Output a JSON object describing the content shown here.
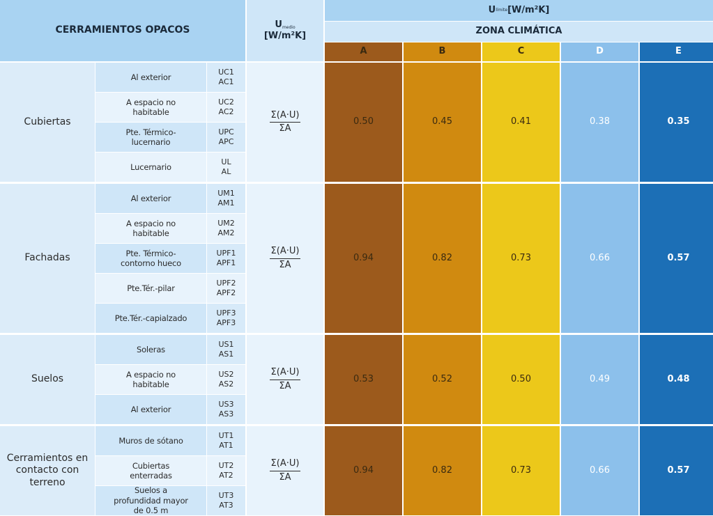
{
  "header": {
    "opacos": "CERRAMIENTOS OPACOS",
    "umedio_main": "U",
    "umedio_sub": "medio",
    "umedio_unit": "[W/m²K]",
    "ulimite_main": "U",
    "ulimite_sub": "límite",
    "ulimite_unit": " [W/m²K]",
    "zona": "ZONA CLIMÁTICA"
  },
  "zones": [
    {
      "label": "A",
      "color": "#9c5a1c"
    },
    {
      "label": "B",
      "color": "#d08a10"
    },
    {
      "label": "C",
      "color": "#ecc81a"
    },
    {
      "label": "D",
      "color": "#8cc0eb"
    },
    {
      "label": "E",
      "color": "#1c6fb6"
    }
  ],
  "formula": {
    "numerator": "Σ(A·U)",
    "denominator": "ΣA"
  },
  "groups": [
    {
      "name": "Cubiertas",
      "rows": [
        {
          "label": "Al exterior",
          "codes": [
            "UC1",
            "AC1"
          ]
        },
        {
          "label": "A espacio no habitable",
          "codes": [
            "UC2",
            "AC2"
          ]
        },
        {
          "label": "Pte. Térmico-lucernario",
          "codes": [
            "UPC",
            "APC"
          ]
        },
        {
          "label": "Lucernario",
          "codes": [
            "UL",
            "AL"
          ]
        }
      ],
      "values": [
        "0.50",
        "0.45",
        "0.41",
        "0.38",
        "0.35"
      ]
    },
    {
      "name": "Fachadas",
      "rows": [
        {
          "label": "Al exterior",
          "codes": [
            "UM1",
            "AM1"
          ]
        },
        {
          "label": "A espacio no habitable",
          "codes": [
            "UM2",
            "AM2"
          ]
        },
        {
          "label": "Pte. Térmico-contorno hueco",
          "codes": [
            "UPF1",
            "APF1"
          ]
        },
        {
          "label": "Pte.Tér.-pilar",
          "codes": [
            "UPF2",
            "APF2"
          ]
        },
        {
          "label": "Pte.Tér.-capialzado",
          "codes": [
            "UPF3",
            "APF3"
          ]
        }
      ],
      "values": [
        "0.94",
        "0.82",
        "0.73",
        "0.66",
        "0.57"
      ]
    },
    {
      "name": "Suelos",
      "rows": [
        {
          "label": "Soleras",
          "codes": [
            "US1",
            "AS1"
          ]
        },
        {
          "label": "A espacio no habitable",
          "codes": [
            "US2",
            "AS2"
          ]
        },
        {
          "label": "Al exterior",
          "codes": [
            "US3",
            "AS3"
          ]
        }
      ],
      "values": [
        "0.53",
        "0.52",
        "0.50",
        "0.49",
        "0.48"
      ]
    },
    {
      "name": "Cerramientos en contacto con terreno",
      "rows": [
        {
          "label": "Muros de sótano",
          "codes": [
            "UT1",
            "AT1"
          ]
        },
        {
          "label": "Cubiertas enterradas",
          "codes": [
            "UT2",
            "AT2"
          ]
        },
        {
          "label": "Suelos a profundidad mayor de 0.5 m",
          "codes": [
            "UT3",
            "AT3"
          ]
        }
      ],
      "values": [
        "0.94",
        "0.82",
        "0.73",
        "0.66",
        "0.57"
      ]
    }
  ]
}
